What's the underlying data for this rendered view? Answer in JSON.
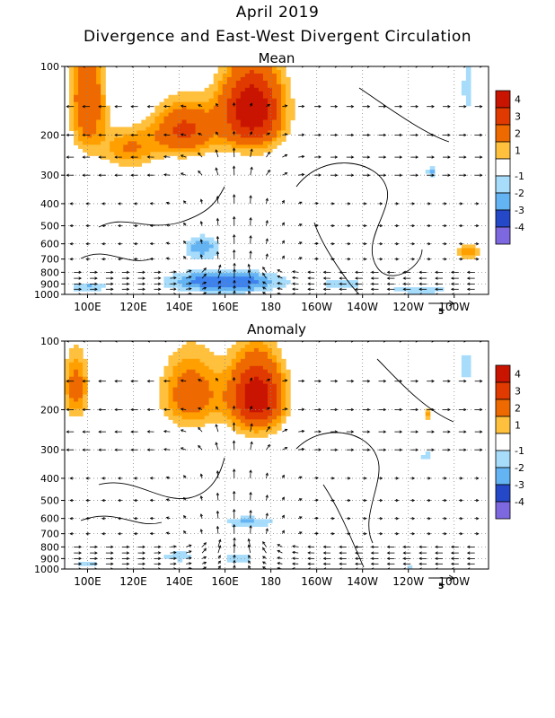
{
  "header": {
    "date": "April 2019",
    "title": "Divergence and East-West Divergent Circulation"
  },
  "colors": {
    "pos": [
      "#ffffff",
      "#ffc03d",
      "#ffa000",
      "#ee6a00",
      "#e03a00",
      "#c81400"
    ],
    "neg": [
      "#ffffff",
      "#a7dcfb",
      "#64b4f4",
      "#3e82ee",
      "#2448c8",
      "#7e68e0"
    ],
    "contour": "#000000"
  },
  "chart_data": [
    {
      "type": "heatmap",
      "subtitle": "Mean",
      "x_ticks": [
        "100E",
        "120E",
        "140E",
        "160E",
        "180",
        "160W",
        "140W",
        "120W",
        "100W"
      ],
      "x_values": [
        100,
        120,
        140,
        160,
        180,
        200,
        220,
        240,
        260
      ],
      "xlim": [
        90,
        275
      ],
      "y_ticks": [
        "100",
        "200",
        "300",
        "400",
        "500",
        "600",
        "700",
        "800",
        "900",
        "1000"
      ],
      "y_values": [
        100,
        200,
        300,
        400,
        500,
        600,
        700,
        800,
        900,
        1000
      ],
      "ylim": [
        100,
        1000
      ],
      "colorbar": [
        "4",
        "3",
        "2",
        "1",
        "-1",
        "-2",
        "-3",
        "-4"
      ],
      "reference_vector": "5",
      "fields": [
        {
          "lon": 172,
          "p": 155,
          "amp": 5.0,
          "slon": 14,
          "sp": 70
        },
        {
          "lon": 142,
          "p": 190,
          "amp": 3.2,
          "slon": 14,
          "sp": 55
        },
        {
          "lon": 100,
          "p": 140,
          "amp": 3.0,
          "slon": 8,
          "sp": 90
        },
        {
          "lon": 118,
          "p": 230,
          "amp": 2.0,
          "slon": 12,
          "sp": 50
        },
        {
          "lon": 160,
          "p": 880,
          "amp": -2.6,
          "slon": 28,
          "sp": 110
        },
        {
          "lon": 150,
          "p": 620,
          "amp": -1.8,
          "slon": 10,
          "sp": 90
        },
        {
          "lon": 100,
          "p": 930,
          "amp": -1.6,
          "slon": 10,
          "sp": 60
        },
        {
          "lon": 245,
          "p": 960,
          "amp": -1.5,
          "slon": 20,
          "sp": 40
        },
        {
          "lon": 266,
          "p": 125,
          "amp": -1.5,
          "slon": 3,
          "sp": 40
        },
        {
          "lon": 250,
          "p": 290,
          "amp": -1.6,
          "slon": 3,
          "sp": 20
        },
        {
          "lon": 266,
          "p": 650,
          "amp": 2.0,
          "slon": 6,
          "sp": 60
        },
        {
          "lon": 212,
          "p": 900,
          "amp": -1.3,
          "slon": 12,
          "sp": 50
        }
      ]
    },
    {
      "type": "heatmap",
      "subtitle": "Anomaly",
      "x_ticks": [
        "100E",
        "120E",
        "140E",
        "160E",
        "180",
        "160W",
        "140W",
        "120W",
        "100W"
      ],
      "x_values": [
        100,
        120,
        140,
        160,
        180,
        200,
        220,
        240,
        260
      ],
      "xlim": [
        90,
        275
      ],
      "y_ticks": [
        "100",
        "200",
        "300",
        "400",
        "500",
        "600",
        "700",
        "800",
        "900",
        "1000"
      ],
      "y_values": [
        100,
        200,
        300,
        400,
        500,
        600,
        700,
        800,
        900,
        1000
      ],
      "ylim": [
        100,
        1000
      ],
      "colorbar": [
        "4",
        "3",
        "2",
        "1",
        "-1",
        "-2",
        "-3",
        "-4"
      ],
      "reference_vector": "5",
      "fields": [
        {
          "lon": 174,
          "p": 175,
          "amp": 4.8,
          "slon": 12,
          "sp": 70
        },
        {
          "lon": 145,
          "p": 170,
          "amp": 2.6,
          "slon": 14,
          "sp": 70
        },
        {
          "lon": 95,
          "p": 160,
          "amp": 2.4,
          "slon": 6,
          "sp": 60
        },
        {
          "lon": 170,
          "p": 620,
          "amp": -1.6,
          "slon": 15,
          "sp": 40
        },
        {
          "lon": 140,
          "p": 880,
          "amp": -1.4,
          "slon": 10,
          "sp": 60
        },
        {
          "lon": 166,
          "p": 900,
          "amp": -1.4,
          "slon": 10,
          "sp": 60
        },
        {
          "lon": 100,
          "p": 950,
          "amp": -1.4,
          "slon": 8,
          "sp": 40
        },
        {
          "lon": 248,
          "p": 320,
          "amp": -1.4,
          "slon": 3,
          "sp": 20
        },
        {
          "lon": 265,
          "p": 130,
          "amp": -1.4,
          "slon": 3,
          "sp": 30
        },
        {
          "lon": 248,
          "p": 210,
          "amp": 1.6,
          "slon": 2,
          "sp": 15
        },
        {
          "lon": 240,
          "p": 970,
          "amp": -1.3,
          "slon": 6,
          "sp": 25
        }
      ]
    }
  ]
}
